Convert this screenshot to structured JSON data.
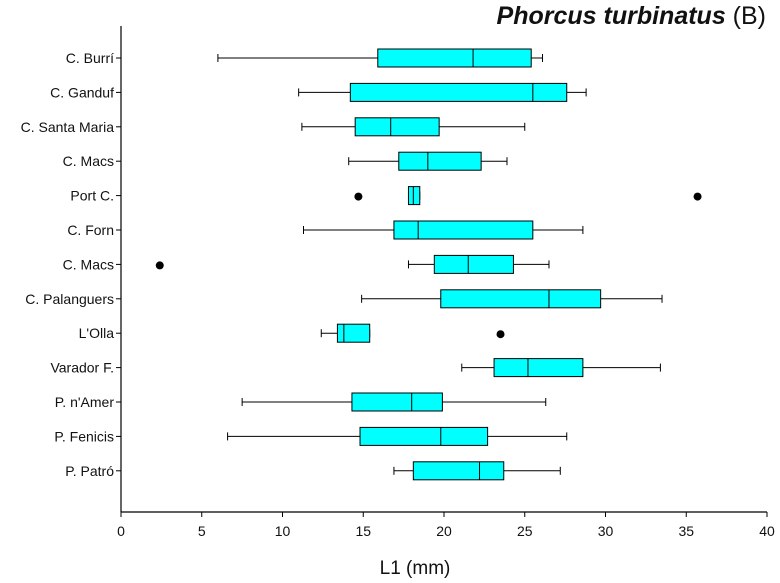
{
  "chart_data": {
    "type": "boxplot",
    "title": "Phorcus turbinatus",
    "title_suffix": "(B)",
    "xlabel": "L1 (mm)",
    "xlim": [
      0,
      40
    ],
    "xticks": [
      "0",
      "5",
      "10",
      "15",
      "20",
      "25",
      "30",
      "35",
      "40"
    ],
    "box_color": "#00ffff",
    "categories": [
      "C. Burrí",
      "C. Ganduf",
      "C. Santa Maria",
      "C. Macs",
      "Port C.",
      "C. Forn",
      "C. Macs",
      "C. Palanguers",
      "L'Olla",
      "Varador F.",
      "P. n'Amer",
      "P. Fenicis",
      "P. Patró"
    ],
    "boxes": [
      {
        "min": 6.0,
        "q1": 15.9,
        "median": 21.8,
        "q3": 25.4,
        "max": 26.1,
        "outliers": []
      },
      {
        "min": 11.0,
        "q1": 14.2,
        "median": 25.5,
        "q3": 27.6,
        "max": 28.8,
        "outliers": []
      },
      {
        "min": 11.2,
        "q1": 14.5,
        "median": 16.7,
        "q3": 19.7,
        "max": 25.0,
        "outliers": []
      },
      {
        "min": 14.1,
        "q1": 17.2,
        "median": 19.0,
        "q3": 22.3,
        "max": 23.9,
        "outliers": []
      },
      {
        "min": 17.8,
        "q1": 17.8,
        "median": 18.1,
        "q3": 18.5,
        "max": 18.5,
        "outliers": [
          14.7,
          35.7
        ]
      },
      {
        "min": 11.3,
        "q1": 16.9,
        "median": 18.4,
        "q3": 25.5,
        "max": 28.6,
        "outliers": []
      },
      {
        "min": 17.8,
        "q1": 19.4,
        "median": 21.5,
        "q3": 24.3,
        "max": 26.5,
        "outliers": [
          2.4
        ]
      },
      {
        "min": 14.9,
        "q1": 19.8,
        "median": 26.5,
        "q3": 29.7,
        "max": 33.5,
        "outliers": []
      },
      {
        "min": 12.4,
        "q1": 13.4,
        "median": 13.8,
        "q3": 15.4,
        "max": 15.4,
        "outliers": [
          23.5
        ]
      },
      {
        "min": 21.1,
        "q1": 23.1,
        "median": 25.2,
        "q3": 28.6,
        "max": 33.4,
        "outliers": []
      },
      {
        "min": 7.5,
        "q1": 14.3,
        "median": 18.0,
        "q3": 19.9,
        "max": 26.3,
        "outliers": []
      },
      {
        "min": 6.6,
        "q1": 14.8,
        "median": 19.8,
        "q3": 22.7,
        "max": 27.6,
        "outliers": []
      },
      {
        "min": 16.9,
        "q1": 18.1,
        "median": 22.2,
        "q3": 23.7,
        "max": 27.2,
        "outliers": []
      }
    ]
  }
}
